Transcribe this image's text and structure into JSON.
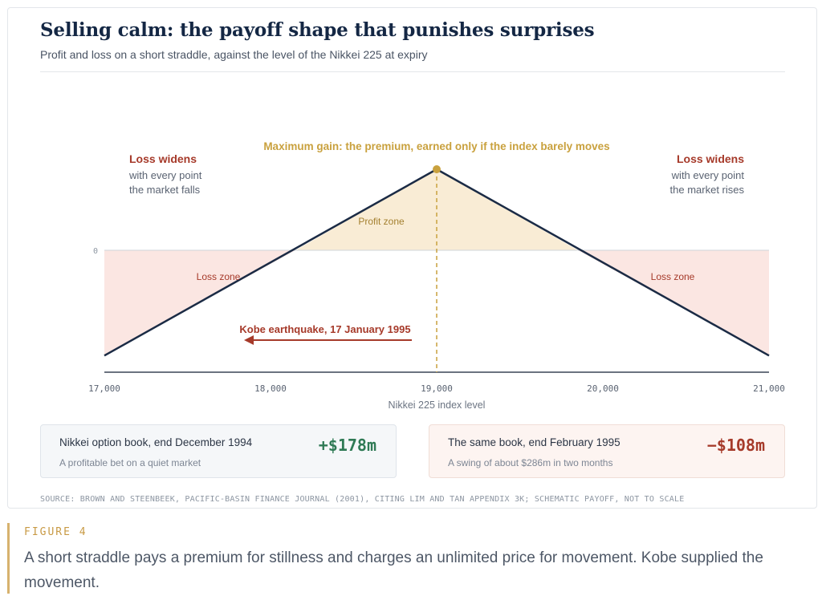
{
  "header": {
    "title": "Selling calm: the payoff shape that punishes surprises",
    "subtitle": "Profit and loss on a short straddle, against the level of the Nikkei 225 at expiry"
  },
  "chart_data": {
    "type": "line",
    "x": [
      17000,
      19000,
      21000
    ],
    "y": [
      -1.3,
      1.0,
      -1.3
    ],
    "x_min": 17000,
    "x_max": 21000,
    "y_min": -1.52,
    "y_max": 1.0,
    "profit_break_even_left": 18150,
    "profit_break_even_right": 19850,
    "xticks": [
      "17,000",
      "18,000",
      "19,000",
      "20,000",
      "21,000"
    ],
    "xtick_values": [
      17000,
      18000,
      19000,
      20000,
      21000
    ],
    "xlabel": "Nikkei 225 index level",
    "ytick_label": "0",
    "annotations": {
      "max_gain": "Maximum gain: the premium, earned only if the index barely moves",
      "left_heading": "Loss widens",
      "left_line1": "with every point",
      "left_line2": "the market falls",
      "right_heading": "Loss widens",
      "right_line1": "with every point",
      "right_line2": "the market rises",
      "profit_zone": "Profit zone",
      "loss_zone_left": "Loss zone",
      "loss_zone_right": "Loss zone",
      "kobe": "Kobe earthquake, 17 January 1995"
    },
    "colors": {
      "line": "#1b2b45",
      "profit_fill": "#f9ecd5",
      "loss_fill": "#fbe6e2",
      "gold": "#c9a13e",
      "loss_text": "#a63a2a"
    }
  },
  "boxes": [
    {
      "label": "Nikkei option book, end December 1994",
      "sub": "A profitable bet on a quiet market",
      "value": "+$178m"
    },
    {
      "label": "The same book, end February 1995",
      "sub": "A swing of about $286m in two months",
      "value": "−$108m"
    }
  ],
  "source": "SOURCE: BROWN AND STEENBEEK, PACIFIC-BASIN FINANCE JOURNAL (2001), CITING LIM AND TAN APPENDIX 3K; SCHEMATIC PAYOFF, NOT TO SCALE",
  "figure": {
    "label": "FIGURE 4",
    "caption": "A short straddle pays a premium for stillness and charges an unlimited price for movement. Kobe supplied the movement."
  }
}
